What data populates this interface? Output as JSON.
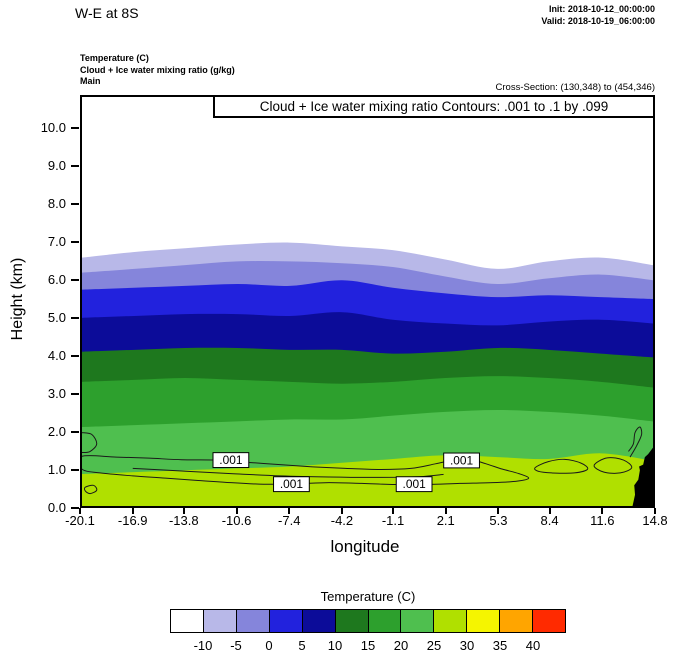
{
  "header": {
    "title": "W-E at 8S",
    "init_label": "Init: 2018-10-12_00:00:00",
    "valid_label": "Valid: 2018-10-19_06:00:00",
    "field_lines": [
      "Temperature  (C)",
      "Cloud + Ice water mixing ratio  (g/kg)",
      "Main"
    ],
    "cross_section": "Cross-Section: (130,348) to (454,346)"
  },
  "chart_data": {
    "type": "filled-contour-cross-section",
    "title_box": "Cloud + Ice water mixing ratio Contours: .001 to .1 by .099",
    "xlabel": "longitude",
    "ylabel": "Height (km)",
    "xlim": [
      -20.1,
      14.8
    ],
    "ylim_km": [
      0,
      10.87
    ],
    "x_tick_values": [
      -20.1,
      -16.9,
      -13.8,
      -10.6,
      -7.4,
      -4.2,
      -1.1,
      2.1,
      5.3,
      8.4,
      11.6,
      14.8
    ],
    "x_tick_labels": [
      "-20.1",
      "-16.9",
      "-13.8",
      "-10.6",
      "-7.4",
      "-4.2",
      "-1.1",
      "2.1",
      "5.3",
      "8.4",
      "11.6",
      "14.8"
    ],
    "y_tick_values": [
      0,
      1,
      2,
      3,
      4,
      5,
      6,
      7,
      8,
      9,
      10
    ],
    "y_tick_labels": [
      "0.0",
      "1.0",
      "2.0",
      "3.0",
      "4.0",
      "5.0",
      "6.0",
      "7.0",
      "8.0",
      "9.0",
      "10.0"
    ],
    "temperature_bands": {
      "note": "filled temperature contours; each band colored below its upper boundary curve; region above coldest boundary is white (< -10 C)",
      "x_lons": [
        -20.1,
        -16.9,
        -13.8,
        -10.6,
        -7.4,
        -4.2,
        -1.1,
        2.1,
        5.3,
        8.4,
        11.6,
        14.8
      ],
      "bands": [
        {
          "upper_boundary_c": -10,
          "color": "#b8b8e8",
          "top_heights_km": [
            6.6,
            6.75,
            6.85,
            6.95,
            7.0,
            6.9,
            6.8,
            6.55,
            6.3,
            6.5,
            6.6,
            6.4
          ]
        },
        {
          "upper_boundary_c": -5,
          "color": "#8585db",
          "top_heights_km": [
            6.2,
            6.3,
            6.4,
            6.5,
            6.5,
            6.45,
            6.35,
            6.1,
            5.9,
            6.05,
            6.15,
            6.0
          ]
        },
        {
          "upper_boundary_c": 0,
          "color": "#2222dd",
          "top_heights_km": [
            5.75,
            5.8,
            5.85,
            5.9,
            5.85,
            6.0,
            5.8,
            5.65,
            5.55,
            5.6,
            5.55,
            5.5
          ]
        },
        {
          "upper_boundary_c": 5,
          "color": "#0c0c99",
          "top_heights_km": [
            5.0,
            5.05,
            5.1,
            5.1,
            5.05,
            5.15,
            4.95,
            4.85,
            4.8,
            4.9,
            4.95,
            4.85
          ]
        },
        {
          "upper_boundary_c": 10,
          "color": "#1e781e",
          "top_heights_km": [
            4.1,
            4.15,
            4.2,
            4.2,
            4.15,
            4.15,
            4.05,
            4.1,
            4.2,
            4.15,
            4.05,
            3.95
          ]
        },
        {
          "upper_boundary_c": 15,
          "color": "#2da02d",
          "top_heights_km": [
            3.3,
            3.35,
            3.4,
            3.35,
            3.3,
            3.25,
            3.3,
            3.4,
            3.45,
            3.4,
            3.3,
            3.15
          ]
        },
        {
          "upper_boundary_c": 20,
          "color": "#4fbf4f",
          "top_heights_km": [
            2.1,
            2.15,
            2.2,
            2.25,
            2.3,
            2.3,
            2.4,
            2.5,
            2.55,
            2.5,
            2.4,
            2.25
          ]
        },
        {
          "upper_boundary_c": 25,
          "color": "#b0e000",
          "top_heights_km": [
            0.85,
            0.9,
            0.95,
            1.0,
            1.05,
            1.15,
            1.25,
            1.35,
            1.3,
            1.25,
            1.4,
            1.2
          ]
        }
      ]
    },
    "cloud_contours": {
      "levels_g_per_kg": [
        0.001,
        0.1
      ],
      "line_color": "#1a1a1a",
      "labels": [
        {
          "text": ".001",
          "lon": -11.0,
          "km": 1.22
        },
        {
          "text": ".001",
          "lon": -7.3,
          "km": 0.58
        },
        {
          "text": ".001",
          "lon": 0.2,
          "km": 0.58
        },
        {
          "text": ".001",
          "lon": 3.1,
          "km": 1.21
        }
      ],
      "lines": [
        {
          "closed": true,
          "points_lon_km": [
            [
              -20.1,
              1.32
            ],
            [
              -18,
              1.3
            ],
            [
              -16,
              1.27
            ],
            [
              -14,
              1.23
            ],
            [
              -12,
              1.22
            ],
            [
              -10,
              1.16
            ],
            [
              -8,
              1.1
            ],
            [
              -6,
              1.04
            ],
            [
              -4,
              1.0
            ],
            [
              -2,
              0.97
            ],
            [
              0,
              1.0
            ],
            [
              1.5,
              1.12
            ],
            [
              2.6,
              1.22
            ],
            [
              3.6,
              1.24
            ],
            [
              4.6,
              1.12
            ],
            [
              5.6,
              0.98
            ],
            [
              6.6,
              0.86
            ],
            [
              7.2,
              0.74
            ],
            [
              6.5,
              0.66
            ],
            [
              5,
              0.62
            ],
            [
              3,
              0.6
            ],
            [
              1,
              0.57
            ],
            [
              -1,
              0.57
            ],
            [
              -3,
              0.6
            ],
            [
              -5,
              0.62
            ],
            [
              -7,
              0.59
            ],
            [
              -9,
              0.58
            ],
            [
              -11,
              0.62
            ],
            [
              -13,
              0.68
            ],
            [
              -15,
              0.74
            ],
            [
              -17,
              0.8
            ],
            [
              -19,
              0.88
            ],
            [
              -20.1,
              0.98
            ]
          ]
        },
        {
          "closed": false,
          "points_lon_km": [
            [
              -17,
              1.0
            ],
            [
              -14,
              0.93
            ],
            [
              -11,
              0.86
            ],
            [
              -8,
              0.8
            ],
            [
              -5,
              0.77
            ],
            [
              -2,
              0.76
            ],
            [
              0.5,
              0.78
            ],
            [
              2,
              0.84
            ]
          ]
        },
        {
          "closed": false,
          "points_lon_km": [
            [
              -20.1,
              1.95
            ],
            [
              -19.5,
              1.9
            ],
            [
              -19.2,
              1.65
            ],
            [
              -19.6,
              1.45
            ],
            [
              -20.1,
              1.42
            ]
          ]
        },
        {
          "closed": true,
          "points_lon_km": [
            [
              -19.9,
              0.5
            ],
            [
              -19.4,
              0.55
            ],
            [
              -19.2,
              0.42
            ],
            [
              -19.6,
              0.33
            ],
            [
              -19.9,
              0.4
            ]
          ]
        },
        {
          "closed": true,
          "points_lon_km": [
            [
              7.6,
              1.02
            ],
            [
              8.4,
              1.18
            ],
            [
              9.4,
              1.24
            ],
            [
              10.4,
              1.14
            ],
            [
              10.8,
              0.98
            ],
            [
              10.0,
              0.88
            ],
            [
              8.6,
              0.88
            ],
            [
              7.8,
              0.92
            ]
          ]
        },
        {
          "closed": true,
          "points_lon_km": [
            [
              11.2,
              1.08
            ],
            [
              12.0,
              1.28
            ],
            [
              13.0,
              1.22
            ],
            [
              13.5,
              1.02
            ],
            [
              12.8,
              0.88
            ],
            [
              11.8,
              0.9
            ]
          ]
        },
        {
          "closed": false,
          "points_lon_km": [
            [
              13.4,
              1.3
            ],
            [
              13.8,
              1.6
            ],
            [
              14.1,
              1.9
            ],
            [
              14.0,
              2.1
            ],
            [
              13.7,
              1.95
            ],
            [
              13.6,
              1.65
            ],
            [
              13.3,
              1.45
            ]
          ]
        }
      ]
    },
    "terrain": {
      "color": "#000000",
      "points_lon_km": [
        [
          13.55,
          0
        ],
        [
          13.7,
          0.3
        ],
        [
          13.65,
          0.55
        ],
        [
          13.9,
          0.7
        ],
        [
          14.0,
          0.95
        ],
        [
          13.95,
          1.05
        ],
        [
          14.2,
          1.1
        ],
        [
          14.3,
          1.3
        ],
        [
          14.5,
          1.38
        ],
        [
          14.8,
          1.55
        ],
        [
          14.8,
          0
        ]
      ]
    },
    "colorbar": {
      "title": "Temperature  (C)",
      "colors": [
        "#ffffff",
        "#b8b8e8",
        "#8585db",
        "#2222dd",
        "#0c0c99",
        "#1e781e",
        "#2da02d",
        "#4fbf4f",
        "#b0e000",
        "#f5f500",
        "#ffa500",
        "#ff2a00"
      ],
      "boundary_labels": [
        "-10",
        "-5",
        "0",
        "5",
        "10",
        "15",
        "20",
        "25",
        "30",
        "35",
        "40"
      ]
    }
  }
}
